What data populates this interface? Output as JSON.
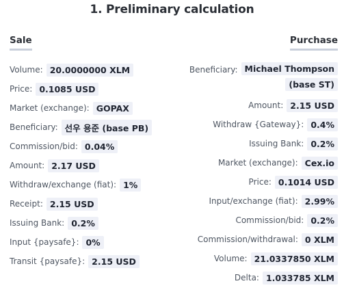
{
  "title": "1. Preliminary calculation",
  "sale": {
    "heading": "Sale",
    "rows": [
      {
        "label": "Volume:",
        "value": "20.0000000 XLM"
      },
      {
        "label": "Price:",
        "value": "0.1085 USD"
      },
      {
        "label": "Market (exchange):",
        "value": "GOPAX"
      },
      {
        "label": "Beneficiary:",
        "value": "선우 용준 (base PB)"
      },
      {
        "label": "Commission/bid:",
        "value": "0.04%"
      },
      {
        "label": "Amount:",
        "value": "2.17 USD"
      },
      {
        "label": "Withdraw/exchange (fiat):",
        "value": "1%"
      },
      {
        "label": "Receipt:",
        "value": "2.15 USD"
      },
      {
        "label": "Issuing Bank:",
        "value": "0.2%"
      },
      {
        "label": "Input {paysafe}:",
        "value": "0%"
      },
      {
        "label": "Transit {paysafe}:",
        "value": "2.15 USD"
      }
    ]
  },
  "purchase": {
    "heading": "Purchase",
    "beneficiary": {
      "label": "Beneficiary:",
      "value_line1": "Michael Thompson",
      "value_line2": "(base ST)"
    },
    "rows": [
      {
        "label": "Amount:",
        "value": "2.15 USD"
      },
      {
        "label": "Withdraw {Gateway}:",
        "value": "0.4%"
      },
      {
        "label": "Issuing Bank:",
        "value": "0.2%"
      },
      {
        "label": "Market (exchange):",
        "value": "Cex.io"
      },
      {
        "label": "Price:",
        "value": "0.1014 USD"
      },
      {
        "label": "Input/exchange (fiat):",
        "value": "2.99%"
      },
      {
        "label": "Commission/bid:",
        "value": "0.2%"
      },
      {
        "label": "Commission/withdrawal:",
        "value": "0 XLM"
      },
      {
        "label": "Volume:",
        "value": "21.0337850 XLM"
      },
      {
        "label": "Delta:",
        "value": "1.033785 XLM"
      }
    ]
  }
}
